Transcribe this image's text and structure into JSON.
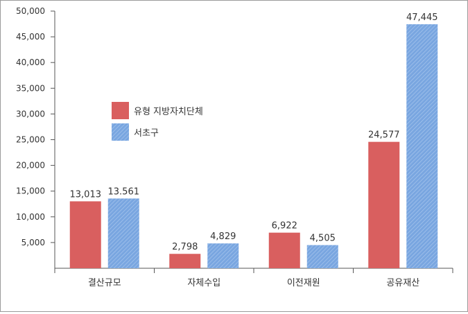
{
  "chart_data": {
    "type": "bar",
    "categories": [
      "결산규모",
      "자체수입",
      "이전재원",
      "공유재산"
    ],
    "series": [
      {
        "name": "유형 지방자치단체",
        "values": [
          13013,
          2798,
          6922,
          24577
        ],
        "labels": [
          "13,013",
          "2,798",
          "6,922",
          "24,577"
        ],
        "color": "#d95f5f"
      },
      {
        "name": "서초구",
        "values": [
          13561,
          4829,
          4505,
          47445
        ],
        "labels": [
          "13.561",
          "4,829",
          "4,505",
          "47,445"
        ],
        "color": "#79a6e0"
      }
    ],
    "ylim": [
      0,
      50000
    ],
    "yticks": [
      5000,
      10000,
      15000,
      20000,
      25000,
      30000,
      35000,
      40000,
      45000,
      50000
    ],
    "ytick_labels": [
      "5,000",
      "10,000",
      "15,000",
      "20,000",
      "25,000",
      "30,000",
      "35,000",
      "40,000",
      "45,000",
      "50,000"
    ],
    "grid": false,
    "legend_position": "upper-left"
  }
}
